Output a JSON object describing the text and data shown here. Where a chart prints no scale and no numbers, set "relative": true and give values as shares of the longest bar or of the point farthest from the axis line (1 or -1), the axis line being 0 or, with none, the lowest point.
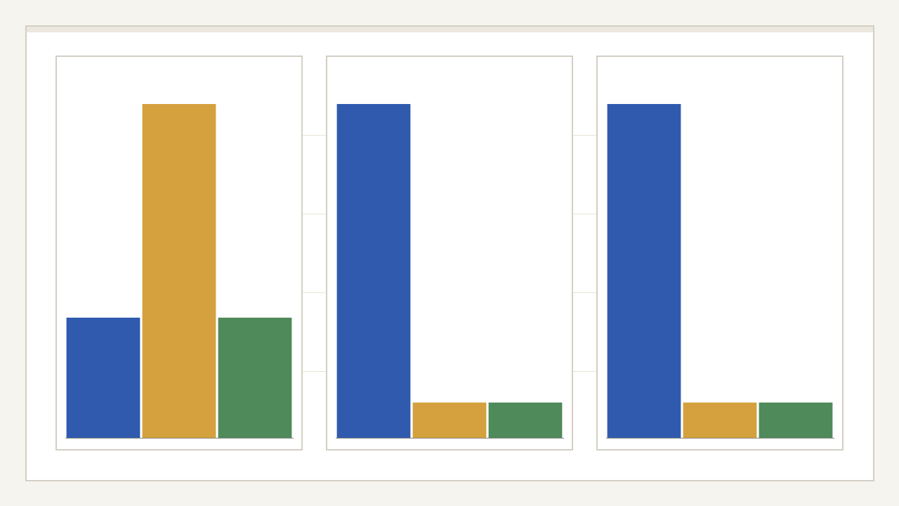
{
  "chart_data": [
    {
      "type": "bar",
      "relative": true,
      "categories": [
        null,
        null,
        null
      ],
      "values": [
        0.36,
        1,
        0.36
      ],
      "colors": [
        "#2f5aae",
        "#d4a13e",
        "#4f8a5a"
      ]
    },
    {
      "type": "bar",
      "relative": true,
      "categories": [
        null,
        null,
        null
      ],
      "values": [
        1,
        0.106,
        0.106
      ],
      "colors": [
        "#2f5aae",
        "#d4a13e",
        "#4f8a5a"
      ]
    },
    {
      "type": "bar",
      "relative": true,
      "categories": [
        null,
        null,
        null
      ],
      "values": [
        1,
        0.106,
        0.106
      ],
      "colors": [
        "#2f5aae",
        "#d4a13e",
        "#4f8a5a"
      ]
    }
  ]
}
